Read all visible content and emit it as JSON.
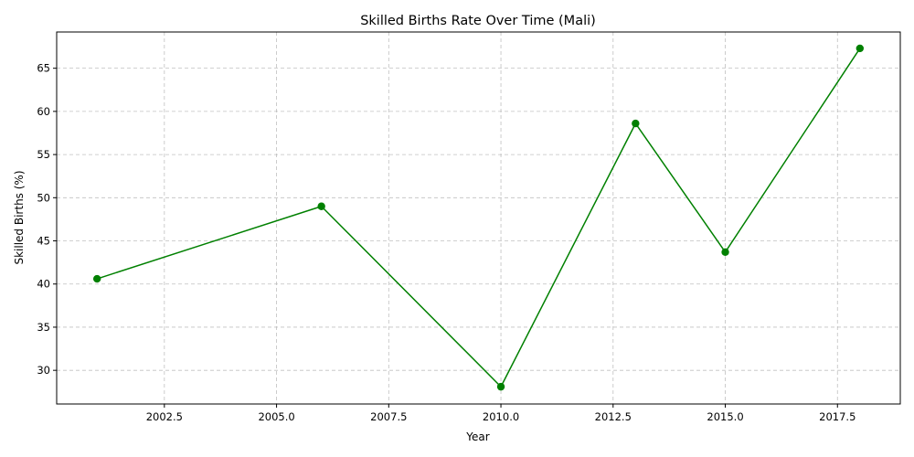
{
  "chart_data": {
    "type": "line",
    "title": "Skilled Births Rate Over Time (Mali)",
    "xlabel": "Year",
    "ylabel": "Skilled Births (%)",
    "xlim": [
      2000.1,
      2018.9
    ],
    "ylim": [
      26.1,
      69.2
    ],
    "xticks": [
      2002.5,
      2005.0,
      2007.5,
      2010.0,
      2012.5,
      2015.0,
      2017.5
    ],
    "xtick_labels": [
      "2002.5",
      "2005.0",
      "2007.5",
      "2010.0",
      "2012.5",
      "2015.0",
      "2017.5"
    ],
    "yticks": [
      30,
      35,
      40,
      45,
      50,
      55,
      60,
      65
    ],
    "ytick_labels": [
      "30",
      "35",
      "40",
      "45",
      "50",
      "55",
      "60",
      "65"
    ],
    "grid": true,
    "legend": "none",
    "series": [
      {
        "color": "#008000",
        "marker": "circle",
        "x": [
          2001,
          2006,
          2010,
          2013,
          2015,
          2018
        ],
        "y": [
          40.6,
          49.0,
          28.1,
          58.6,
          43.7,
          67.3
        ]
      }
    ]
  }
}
